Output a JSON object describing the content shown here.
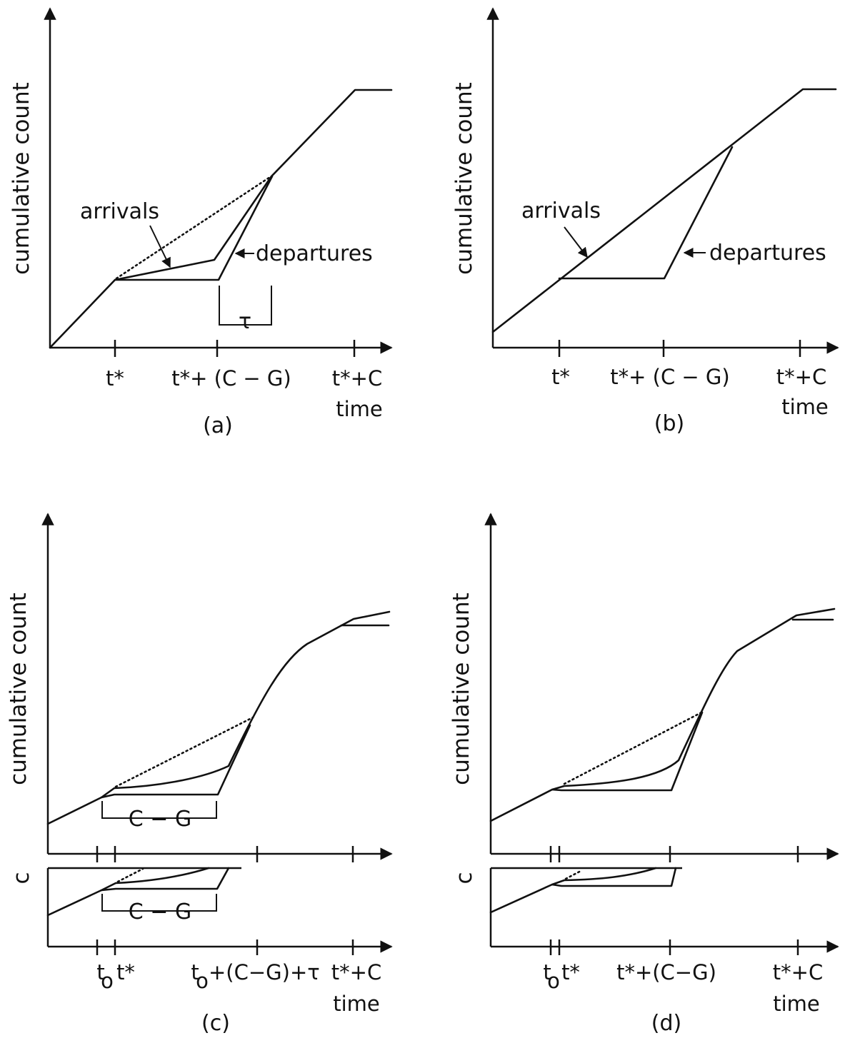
{
  "panels": [
    {
      "id": "a",
      "caption": "(a)",
      "ylabel": "cumulative count",
      "xlabel": "time",
      "ticks": [
        "t*",
        "t*+ (C − G)",
        "t*+C"
      ],
      "annotations": {
        "arrivals": "arrivals",
        "departures": "departures",
        "interval": "τ"
      }
    },
    {
      "id": "b",
      "caption": "(b)",
      "ylabel": "cumulative count",
      "xlabel": "time",
      "ticks": [
        "t*",
        "t*+ (C − G)",
        "t*+C"
      ],
      "annotations": {
        "arrivals": "arrivals",
        "departures": "departures"
      }
    },
    {
      "id": "c",
      "caption": "(c)",
      "ylabel": "cumulative count",
      "xlabel": "time",
      "inset_label": "c",
      "ticks": [
        "t",
        "o",
        "t*",
        "t",
        "o",
        "+(C−G)+τ",
        "t*+C"
      ],
      "annotations": {
        "bracket_main": "C − G",
        "bracket_inset": "C − G"
      }
    },
    {
      "id": "d",
      "caption": "(d)",
      "ylabel": "cumulative count",
      "xlabel": "time",
      "inset_label": "c",
      "ticks": [
        "t",
        "o",
        "t*",
        "t*+(C−G)",
        "t*+C"
      ]
    }
  ],
  "colors": {
    "ink": "#111111",
    "paper": "#ffffff"
  }
}
